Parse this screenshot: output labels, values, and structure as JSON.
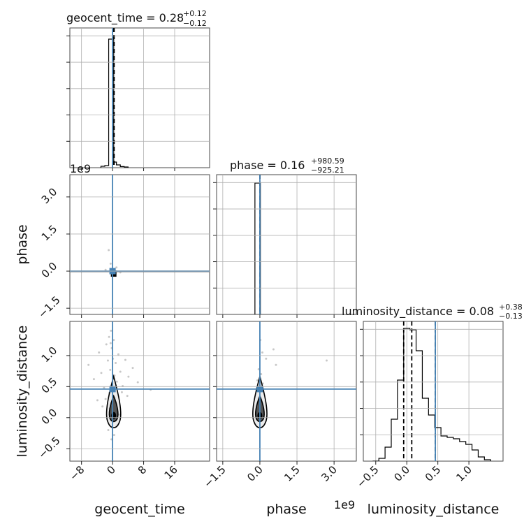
{
  "chart_data": {
    "type": "corner",
    "truth_color": "#4682b4",
    "parameters": [
      "geocent_time",
      "phase",
      "luminosity_distance"
    ],
    "axis_labels": {
      "geocent_time": "geocent_time",
      "phase": "phase",
      "luminosity_distance": "luminosity_distance"
    },
    "titles": [
      {
        "param": "geocent_time",
        "prefix": "geocent_time = 0.28",
        "plus": "+0.12",
        "minus": "−0.12"
      },
      {
        "param": "phase",
        "prefix": "phase = 0.16",
        "plus": "+980.59",
        "minus": "−925.21"
      },
      {
        "param": "luminosity_distance",
        "prefix": "luminosity_distance = 0.08",
        "plus": "+0.38",
        "minus": "−0.13"
      }
    ],
    "scale_offset_label": "1e9",
    "ranges": {
      "geocent_time": [
        -11,
        25
      ],
      "phase": [
        -1750000000.0,
        3900000000.0
      ],
      "luminosity_distance": [
        -0.7,
        1.55
      ]
    },
    "ticks": {
      "geocent_time": {
        "values": [
          -8,
          0,
          8,
          16
        ],
        "labels": [
          "−8",
          "0",
          "8",
          "16"
        ]
      },
      "phase": {
        "values": [
          -1500000000.0,
          0,
          1500000000.0,
          3000000000.0
        ],
        "labels": [
          "−1.5",
          "0.0",
          "1.5",
          "3.0"
        ]
      },
      "luminosity_distance": {
        "values": [
          -0.5,
          0,
          0.5,
          1.0
        ],
        "labels": [
          "−0.5",
          "0.0",
          "0.5",
          "1.0"
        ]
      }
    },
    "truths": {
      "geocent_time": 0.0,
      "phase": 0.0,
      "luminosity_distance": 0.46
    },
    "quantiles": {
      "geocent_time": [
        0.16,
        0.28,
        0.4
      ],
      "phase": [
        -925.05,
        0.16,
        980.75
      ],
      "luminosity_distance": [
        -0.05,
        0.08,
        0.46
      ]
    },
    "histograms": {
      "geocent_time": {
        "edges": [
          -3,
          -2,
          -1,
          -0.3,
          0.3,
          1,
          2,
          3,
          4
        ],
        "counts": [
          0.01,
          0.015,
          0.92,
          0.92,
          0.04,
          0.02,
          0.008,
          0.005
        ]
      },
      "phase": {
        "edges": [
          -200000000.0,
          0.0,
          20000000.0
        ],
        "counts": [
          0.94,
          0.94
        ]
      },
      "luminosity_distance": {
        "edges": [
          -0.55,
          -0.45,
          -0.35,
          -0.25,
          -0.15,
          -0.05,
          0.05,
          0.15,
          0.25,
          0.35,
          0.45,
          0.55,
          0.65,
          0.75,
          0.85,
          0.95,
          1.05,
          1.15,
          1.25,
          1.35
        ],
        "counts": [
          0.0,
          0.02,
          0.1,
          0.3,
          0.58,
          0.95,
          0.94,
          0.79,
          0.45,
          0.33,
          0.24,
          0.18,
          0.17,
          0.16,
          0.14,
          0.12,
          0.08,
          0.03,
          0.01
        ]
      }
    },
    "scatter": {
      "luminosity_distance_vs_geocent_time": {
        "x": [
          -6.2,
          -4.8,
          -3.5,
          -2.9,
          -2.2,
          -1.6,
          -1.2,
          -0.9,
          -0.6,
          -0.4,
          -0.2,
          0.1,
          0.3,
          0.5,
          0.8,
          1.1,
          1.5,
          2.0,
          2.6,
          3.3,
          4.1,
          5.2,
          6.5,
          9.8,
          -1.8,
          -0.7,
          0.6,
          1.3,
          2.4,
          -2.6,
          -1.1,
          0.9,
          3.8,
          -3.9,
          -0.3,
          0.4,
          1.7,
          -0.5,
          0.2,
          -0.8
        ],
        "y": [
          0.85,
          0.62,
          1.05,
          0.72,
          0.48,
          1.18,
          0.92,
          1.3,
          0.77,
          1.4,
          1.12,
          0.95,
          1.25,
          0.68,
          0.88,
          0.58,
          1.02,
          0.74,
          0.51,
          0.93,
          0.66,
          0.8,
          0.57,
          0.45,
          0.3,
          0.15,
          0.25,
          -0.12,
          0.41,
          0.18,
          -0.2,
          0.08,
          0.35,
          0.28,
          -0.35,
          -0.28,
          0.05,
          1.2,
          0.62,
          0.4
        ]
      },
      "luminosity_distance_vs_phase": {
        "x": [
          100000000.0,
          250000000.0,
          550000000.0,
          650000000.0,
          50000000.0,
          2700000000.0,
          -100000000.0,
          20000000.0,
          120000000.0,
          -50000000.0
        ],
        "y": [
          1.05,
          0.95,
          1.1,
          0.85,
          0.7,
          0.92,
          0.6,
          1.25,
          0.55,
          0.78
        ]
      },
      "phase_vs_geocent_time": {
        "x": [
          -1.0,
          -0.5,
          1.0,
          2.0,
          -1.8
        ],
        "y": [
          850000000.0,
          300000000.0,
          150000000.0,
          -50000000.0,
          50000000.0
        ]
      }
    }
  }
}
